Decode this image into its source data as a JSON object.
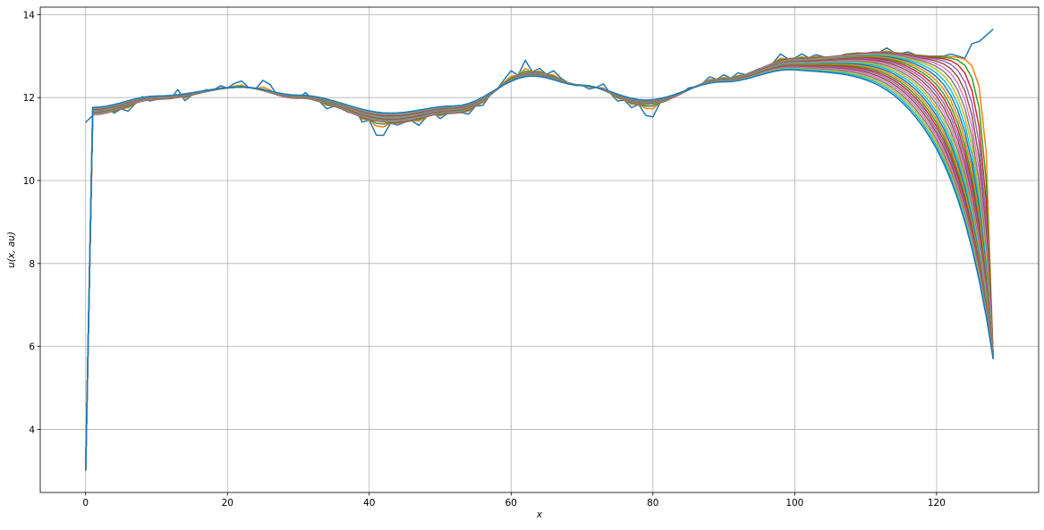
{
  "chart_data": {
    "type": "line",
    "title": "",
    "xlabel": "x",
    "ylabel": "u(x, au)",
    "xlim": [
      -6.4,
      134.4
    ],
    "ylim": [
      2.48,
      14.18
    ],
    "xticks": [
      0,
      20,
      40,
      60,
      80,
      100,
      120
    ],
    "yticks": [
      4,
      6,
      8,
      10,
      12,
      14
    ],
    "grid": true,
    "legend": "none",
    "colors": [
      "#1f77b4",
      "#ff7f0e",
      "#2ca02c",
      "#d62728",
      "#9467bd",
      "#8c564b",
      "#e377c2",
      "#7f7f7f",
      "#bcbd22",
      "#17becf"
    ],
    "x_range": [
      0,
      128
    ],
    "num_series": 31,
    "base_curve_control_points": {
      "x": [
        1,
        10,
        22,
        30,
        43,
        52,
        63,
        70,
        79,
        90,
        100,
        112,
        120
      ],
      "y": [
        11.57,
        11.95,
        12.25,
        11.98,
        11.38,
        11.62,
        12.62,
        12.3,
        11.82,
        12.45,
        12.95,
        13.1,
        13.0
      ]
    },
    "left_boundary": {
      "x0_value": 3.0,
      "first_series_x0_value": 11.4
    },
    "right_boundary": {
      "x128_value": 5.7,
      "first_series_x128_value": 13.65
    },
    "first_series_tail": {
      "x": [
        122,
        123,
        124,
        125,
        126,
        127,
        128
      ],
      "y": [
        13.05,
        13.0,
        12.95,
        13.3,
        13.35,
        13.5,
        13.65
      ]
    },
    "first_series_deviations": {
      "x": [
        2,
        3,
        4,
        6,
        8,
        9,
        11,
        13,
        14,
        17,
        19,
        21,
        22,
        25,
        26,
        31,
        34,
        36,
        38,
        39,
        41,
        42,
        44,
        47,
        49,
        50,
        54,
        56,
        59,
        60,
        62,
        64,
        66,
        67,
        71,
        73,
        75,
        77,
        79,
        80,
        83,
        85,
        88,
        90,
        92,
        94,
        96,
        98,
        101,
        103,
        105,
        106,
        110,
        113,
        116
      ],
      "dy": [
        0.12,
        0.15,
        -0.04,
        -0.12,
        0.12,
        -0.02,
        0.05,
        0.2,
        -0.1,
        0.05,
        0.08,
        0.1,
        0.15,
        0.25,
        0.2,
        0.15,
        -0.12,
        0.05,
        0.15,
        -0.1,
        -0.32,
        -0.3,
        -0.05,
        -0.15,
        0.08,
        -0.1,
        -0.1,
        -0.1,
        0.1,
        0.2,
        0.3,
        0.1,
        0.15,
        0.05,
        -0.08,
        0.15,
        -0.1,
        -0.12,
        -0.25,
        -0.3,
        0.05,
        0.05,
        0.1,
        0.1,
        0.1,
        0.0,
        -0.15,
        0.15,
        0.1,
        0.06,
        -0.12,
        -0.1,
        -0.03,
        0.1,
        0.05
      ]
    }
  }
}
